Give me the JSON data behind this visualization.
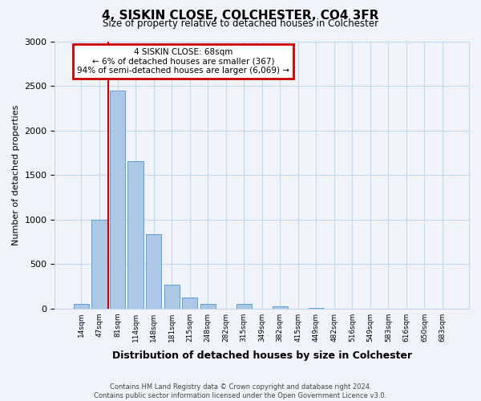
{
  "title": "4, SISKIN CLOSE, COLCHESTER, CO4 3FR",
  "subtitle": "Size of property relative to detached houses in Colchester",
  "xlabel": "Distribution of detached houses by size in Colchester",
  "ylabel": "Number of detached properties",
  "bin_labels": [
    "14sqm",
    "47sqm",
    "81sqm",
    "114sqm",
    "148sqm",
    "181sqm",
    "215sqm",
    "248sqm",
    "282sqm",
    "315sqm",
    "349sqm",
    "382sqm",
    "415sqm",
    "449sqm",
    "482sqm",
    "516sqm",
    "549sqm",
    "583sqm",
    "616sqm",
    "650sqm",
    "683sqm"
  ],
  "bar_values": [
    50,
    1000,
    2450,
    1650,
    830,
    270,
    120,
    50,
    0,
    50,
    0,
    20,
    0,
    10,
    0,
    0,
    0,
    0,
    0,
    0,
    0
  ],
  "bar_color": "#adc8e6",
  "bar_edgecolor": "#5a9fd4",
  "vline_color": "#cc0000",
  "annotation_title": "4 SISKIN CLOSE: 68sqm",
  "annotation_line1": "← 6% of detached houses are smaller (367)",
  "annotation_line2": "94% of semi-detached houses are larger (6,069) →",
  "annotation_box_color": "#cc0000",
  "ylim": [
    0,
    3000
  ],
  "yticks": [
    0,
    500,
    1000,
    1500,
    2000,
    2500,
    3000
  ],
  "footer_line1": "Contains HM Land Registry data © Crown copyright and database right 2024.",
  "footer_line2": "Contains public sector information licensed under the Open Government Licence v3.0.",
  "bg_color": "#f0f4fa",
  "grid_color": "#c8d8ec"
}
